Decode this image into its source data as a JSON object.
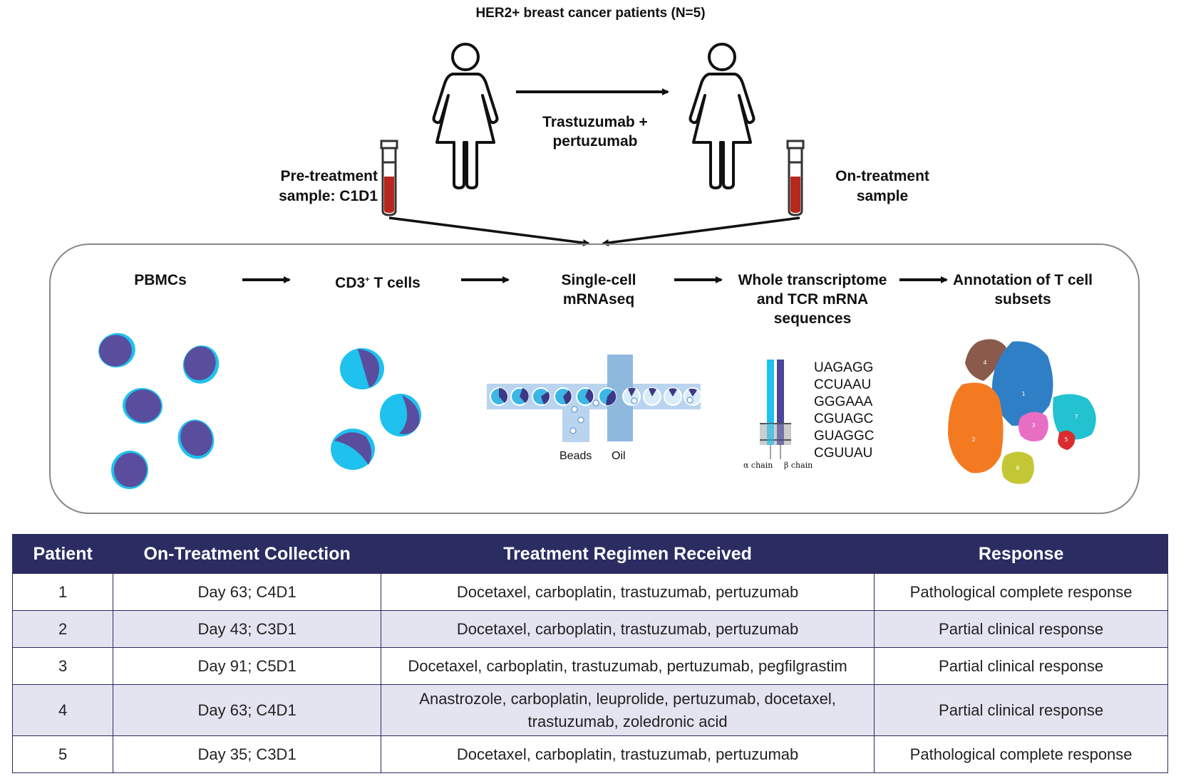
{
  "title": "HER2+ breast cancer patients (N=5)",
  "treatment_label": [
    "Trastuzumab +",
    "pertuzumab"
  ],
  "pre_sample_label": [
    "Pre-treatment",
    "sample: C1D1"
  ],
  "on_sample_label": [
    "On-treatment",
    "sample"
  ],
  "workflow_steps": [
    {
      "lines": [
        "PBMCs"
      ]
    },
    {
      "lines": [
        "CD3",
        "+",
        " T cells"
      ]
    },
    {
      "lines": [
        "Single-cell",
        "mRNAseq"
      ]
    },
    {
      "lines": [
        "Whole transcriptome",
        "and TCR mRNA",
        "sequences"
      ]
    },
    {
      "lines": [
        "Annotation of T cell",
        "subsets"
      ]
    }
  ],
  "microfluidics": {
    "beads_label": "Beads",
    "oil_label": "Oil"
  },
  "tcr": {
    "sequences": [
      "UAGAGG",
      "CCUAAU",
      "GGGAAA",
      "CGUAGC",
      "GUAGGC",
      "CGUUAU"
    ],
    "alpha_label": "α chain",
    "beta_label": "β chain"
  },
  "umap_clusters": [
    "1",
    "2",
    "3",
    "4",
    "5",
    "6",
    "7"
  ],
  "colors": {
    "header": "#2a2c62",
    "cell_body": "#5a4d9e",
    "cell_rim": "#1fc1ee",
    "row_alt": "#e4e3f0",
    "blood": "#b8271d"
  },
  "table": {
    "headers": [
      "Patient",
      "On-Treatment Collection",
      "Treatment Regimen Received",
      "Response"
    ],
    "rows": [
      {
        "patient": "1",
        "collection": "Day 63; C4D1",
        "regimen": [
          "Docetaxel, carboplatin, trastuzumab, pertuzumab"
        ],
        "response": "Pathological complete response"
      },
      {
        "patient": "2",
        "collection": "Day 43; C3D1",
        "regimen": [
          "Docetaxel, carboplatin, trastuzumab, pertuzumab"
        ],
        "response": "Partial clinical response"
      },
      {
        "patient": "3",
        "collection": "Day 91; C5D1",
        "regimen": [
          "Docetaxel, carboplatin, trastuzumab, pertuzumab, pegfilgrastim"
        ],
        "response": "Partial clinical response"
      },
      {
        "patient": "4",
        "collection": "Day 63; C4D1",
        "regimen": [
          "Anastrozole, carboplatin, leuprolide, pertuzumab, docetaxel,",
          "trastuzumab, zoledronic acid"
        ],
        "response": "Partial clinical response"
      },
      {
        "patient": "5",
        "collection": "Day 35; C3D1",
        "regimen": [
          "Docetaxel, carboplatin, trastuzumab, pertuzumab"
        ],
        "response": "Pathological complete response"
      }
    ]
  }
}
